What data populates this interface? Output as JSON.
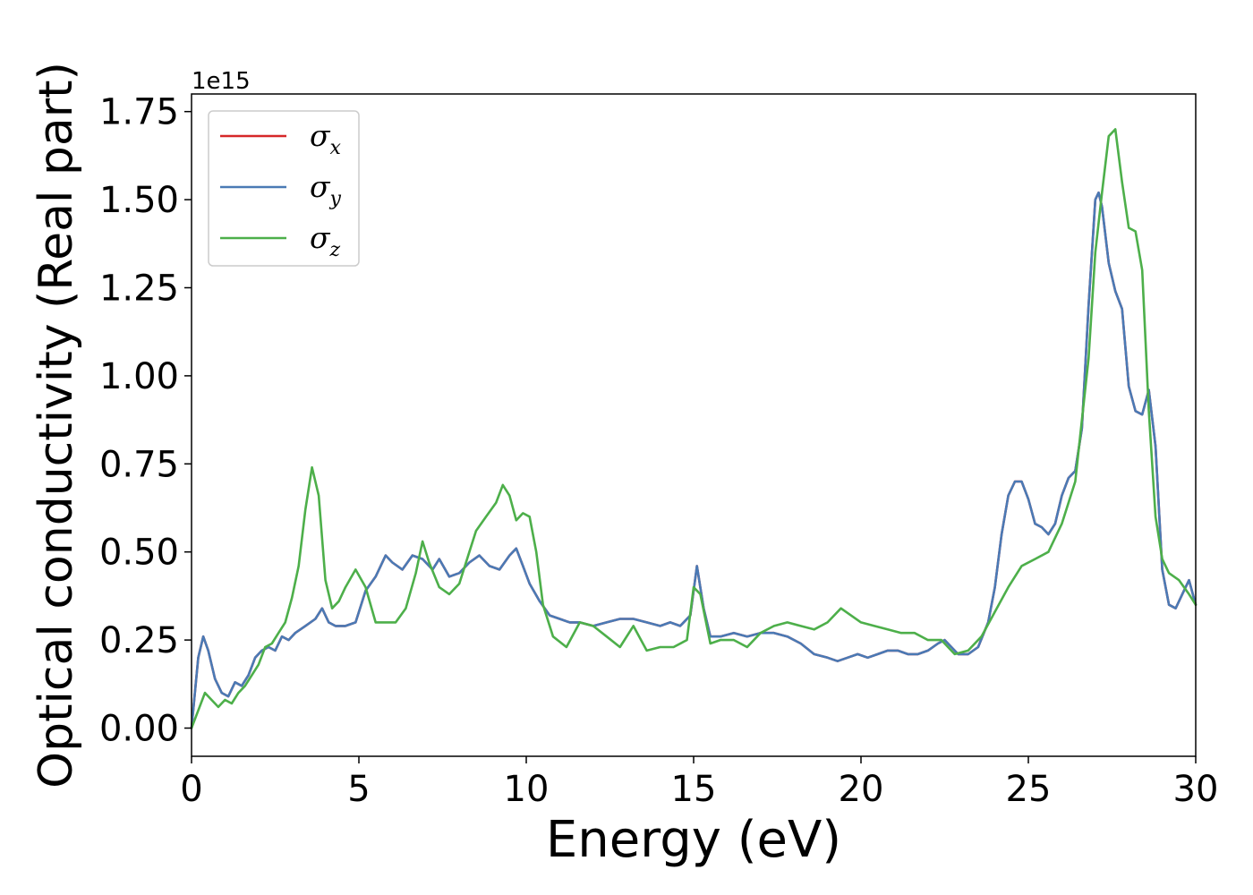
{
  "chart_data": {
    "type": "line",
    "xlabel": "Energy (eV)",
    "ylabel": "Optical conductivity (Real part)",
    "y_offset_label": "1e15",
    "y_scale_factor": 1000000000000000.0,
    "xlim": [
      0,
      30
    ],
    "ylim": [
      -0.08,
      1.8
    ],
    "xticks": [
      0,
      5,
      10,
      15,
      20,
      25,
      30
    ],
    "yticks": [
      0.0,
      0.25,
      0.5,
      0.75,
      1.0,
      1.25,
      1.5,
      1.75
    ],
    "ytick_labels": [
      "0.00",
      "0.25",
      "0.50",
      "0.75",
      "1.00",
      "1.25",
      "1.50",
      "1.75"
    ],
    "grid": false,
    "legend_position": "top-left",
    "series": [
      {
        "name": "σx",
        "symbol": "σ",
        "subscript": "x",
        "color": "#d62728",
        "x": [
          0,
          0.2,
          0.35,
          0.5,
          0.7,
          0.9,
          1.1,
          1.3,
          1.5,
          1.7,
          1.9,
          2.1,
          2.3,
          2.5,
          2.7,
          2.9,
          3.1,
          3.4,
          3.7,
          3.9,
          4.1,
          4.3,
          4.6,
          4.9,
          5.2,
          5.5,
          5.8,
          6.0,
          6.3,
          6.6,
          6.9,
          7.2,
          7.4,
          7.7,
          8.0,
          8.3,
          8.6,
          8.9,
          9.2,
          9.5,
          9.7,
          9.9,
          10.1,
          10.4,
          10.7,
          11.0,
          11.3,
          11.6,
          12.0,
          12.4,
          12.8,
          13.2,
          13.6,
          14.0,
          14.3,
          14.6,
          14.9,
          15.1,
          15.3,
          15.5,
          15.8,
          16.2,
          16.6,
          17.0,
          17.4,
          17.8,
          18.2,
          18.6,
          19.0,
          19.3,
          19.6,
          19.9,
          20.2,
          20.5,
          20.8,
          21.1,
          21.4,
          21.7,
          22.0,
          22.3,
          22.5,
          22.7,
          22.9,
          23.2,
          23.5,
          23.8,
          24.0,
          24.2,
          24.4,
          24.6,
          24.8,
          25.0,
          25.2,
          25.4,
          25.6,
          25.8,
          26.0,
          26.2,
          26.4,
          26.6,
          26.8,
          27.0,
          27.1,
          27.2,
          27.4,
          27.6,
          27.8,
          28.0,
          28.2,
          28.4,
          28.6,
          28.8,
          29.0,
          29.2,
          29.4,
          29.6,
          29.8,
          30.0
        ],
        "y": [
          0.0,
          0.2,
          0.26,
          0.22,
          0.14,
          0.1,
          0.09,
          0.13,
          0.12,
          0.15,
          0.2,
          0.22,
          0.23,
          0.22,
          0.26,
          0.25,
          0.27,
          0.29,
          0.31,
          0.34,
          0.3,
          0.29,
          0.29,
          0.3,
          0.39,
          0.43,
          0.49,
          0.47,
          0.45,
          0.49,
          0.48,
          0.45,
          0.48,
          0.43,
          0.44,
          0.47,
          0.49,
          0.46,
          0.45,
          0.49,
          0.51,
          0.46,
          0.41,
          0.36,
          0.32,
          0.31,
          0.3,
          0.3,
          0.29,
          0.3,
          0.31,
          0.31,
          0.3,
          0.29,
          0.3,
          0.29,
          0.32,
          0.46,
          0.34,
          0.26,
          0.26,
          0.27,
          0.26,
          0.27,
          0.27,
          0.26,
          0.24,
          0.21,
          0.2,
          0.19,
          0.2,
          0.21,
          0.2,
          0.21,
          0.22,
          0.22,
          0.21,
          0.21,
          0.22,
          0.24,
          0.25,
          0.23,
          0.21,
          0.21,
          0.23,
          0.3,
          0.4,
          0.55,
          0.66,
          0.7,
          0.7,
          0.65,
          0.58,
          0.57,
          0.55,
          0.58,
          0.66,
          0.71,
          0.73,
          0.85,
          1.2,
          1.5,
          1.52,
          1.48,
          1.32,
          1.24,
          1.19,
          0.97,
          0.9,
          0.89,
          0.96,
          0.8,
          0.45,
          0.35,
          0.34,
          0.38,
          0.42,
          0.35
        ]
      },
      {
        "name": "σy",
        "symbol": "σ",
        "subscript": "y",
        "color": "#4a7ab5",
        "x": [
          0,
          0.2,
          0.35,
          0.5,
          0.7,
          0.9,
          1.1,
          1.3,
          1.5,
          1.7,
          1.9,
          2.1,
          2.3,
          2.5,
          2.7,
          2.9,
          3.1,
          3.4,
          3.7,
          3.9,
          4.1,
          4.3,
          4.6,
          4.9,
          5.2,
          5.5,
          5.8,
          6.0,
          6.3,
          6.6,
          6.9,
          7.2,
          7.4,
          7.7,
          8.0,
          8.3,
          8.6,
          8.9,
          9.2,
          9.5,
          9.7,
          9.9,
          10.1,
          10.4,
          10.7,
          11.0,
          11.3,
          11.6,
          12.0,
          12.4,
          12.8,
          13.2,
          13.6,
          14.0,
          14.3,
          14.6,
          14.9,
          15.1,
          15.3,
          15.5,
          15.8,
          16.2,
          16.6,
          17.0,
          17.4,
          17.8,
          18.2,
          18.6,
          19.0,
          19.3,
          19.6,
          19.9,
          20.2,
          20.5,
          20.8,
          21.1,
          21.4,
          21.7,
          22.0,
          22.3,
          22.5,
          22.7,
          22.9,
          23.2,
          23.5,
          23.8,
          24.0,
          24.2,
          24.4,
          24.6,
          24.8,
          25.0,
          25.2,
          25.4,
          25.6,
          25.8,
          26.0,
          26.2,
          26.4,
          26.6,
          26.8,
          27.0,
          27.1,
          27.2,
          27.4,
          27.6,
          27.8,
          28.0,
          28.2,
          28.4,
          28.6,
          28.8,
          29.0,
          29.2,
          29.4,
          29.6,
          29.8,
          30.0
        ],
        "y": [
          0.0,
          0.2,
          0.26,
          0.22,
          0.14,
          0.1,
          0.09,
          0.13,
          0.12,
          0.15,
          0.2,
          0.22,
          0.23,
          0.22,
          0.26,
          0.25,
          0.27,
          0.29,
          0.31,
          0.34,
          0.3,
          0.29,
          0.29,
          0.3,
          0.39,
          0.43,
          0.49,
          0.47,
          0.45,
          0.49,
          0.48,
          0.45,
          0.48,
          0.43,
          0.44,
          0.47,
          0.49,
          0.46,
          0.45,
          0.49,
          0.51,
          0.46,
          0.41,
          0.36,
          0.32,
          0.31,
          0.3,
          0.3,
          0.29,
          0.3,
          0.31,
          0.31,
          0.3,
          0.29,
          0.3,
          0.29,
          0.32,
          0.46,
          0.34,
          0.26,
          0.26,
          0.27,
          0.26,
          0.27,
          0.27,
          0.26,
          0.24,
          0.21,
          0.2,
          0.19,
          0.2,
          0.21,
          0.2,
          0.21,
          0.22,
          0.22,
          0.21,
          0.21,
          0.22,
          0.24,
          0.25,
          0.23,
          0.21,
          0.21,
          0.23,
          0.3,
          0.4,
          0.55,
          0.66,
          0.7,
          0.7,
          0.65,
          0.58,
          0.57,
          0.55,
          0.58,
          0.66,
          0.71,
          0.73,
          0.85,
          1.2,
          1.5,
          1.52,
          1.48,
          1.32,
          1.24,
          1.19,
          0.97,
          0.9,
          0.89,
          0.96,
          0.8,
          0.45,
          0.35,
          0.34,
          0.38,
          0.42,
          0.35
        ]
      },
      {
        "name": "σz",
        "symbol": "σ",
        "subscript": "z",
        "color": "#4daf4a",
        "x": [
          0,
          0.2,
          0.4,
          0.6,
          0.8,
          1.0,
          1.2,
          1.4,
          1.6,
          1.8,
          2.0,
          2.2,
          2.4,
          2.6,
          2.8,
          3.0,
          3.2,
          3.4,
          3.6,
          3.8,
          4.0,
          4.2,
          4.4,
          4.6,
          4.9,
          5.2,
          5.5,
          5.8,
          6.1,
          6.4,
          6.7,
          6.9,
          7.1,
          7.4,
          7.7,
          8.0,
          8.3,
          8.5,
          8.8,
          9.1,
          9.3,
          9.5,
          9.7,
          9.9,
          10.1,
          10.3,
          10.5,
          10.8,
          11.2,
          11.6,
          12.0,
          12.4,
          12.8,
          13.2,
          13.6,
          14.0,
          14.4,
          14.8,
          15.0,
          15.2,
          15.5,
          15.8,
          16.2,
          16.6,
          17.0,
          17.4,
          17.8,
          18.2,
          18.6,
          19.0,
          19.4,
          19.7,
          20.0,
          20.4,
          20.8,
          21.2,
          21.6,
          22.0,
          22.4,
          22.8,
          23.2,
          23.6,
          24.0,
          24.4,
          24.8,
          25.2,
          25.6,
          26.0,
          26.4,
          26.8,
          27.0,
          27.2,
          27.4,
          27.6,
          27.8,
          28.0,
          28.2,
          28.4,
          28.6,
          28.8,
          29.0,
          29.2,
          29.5,
          29.8,
          30.0
        ],
        "y": [
          0.0,
          0.05,
          0.1,
          0.08,
          0.06,
          0.08,
          0.07,
          0.1,
          0.12,
          0.15,
          0.18,
          0.23,
          0.24,
          0.27,
          0.3,
          0.37,
          0.46,
          0.62,
          0.74,
          0.66,
          0.42,
          0.34,
          0.36,
          0.4,
          0.45,
          0.4,
          0.3,
          0.3,
          0.3,
          0.34,
          0.44,
          0.53,
          0.47,
          0.4,
          0.38,
          0.41,
          0.5,
          0.56,
          0.6,
          0.64,
          0.69,
          0.66,
          0.59,
          0.61,
          0.6,
          0.5,
          0.35,
          0.26,
          0.23,
          0.3,
          0.29,
          0.26,
          0.23,
          0.29,
          0.22,
          0.23,
          0.23,
          0.25,
          0.4,
          0.38,
          0.24,
          0.25,
          0.25,
          0.23,
          0.27,
          0.29,
          0.3,
          0.29,
          0.28,
          0.3,
          0.34,
          0.32,
          0.3,
          0.29,
          0.28,
          0.27,
          0.27,
          0.25,
          0.25,
          0.21,
          0.22,
          0.26,
          0.33,
          0.4,
          0.46,
          0.48,
          0.5,
          0.58,
          0.7,
          1.05,
          1.35,
          1.52,
          1.68,
          1.7,
          1.55,
          1.42,
          1.41,
          1.3,
          0.9,
          0.6,
          0.48,
          0.44,
          0.42,
          0.38,
          0.35
        ]
      }
    ]
  }
}
